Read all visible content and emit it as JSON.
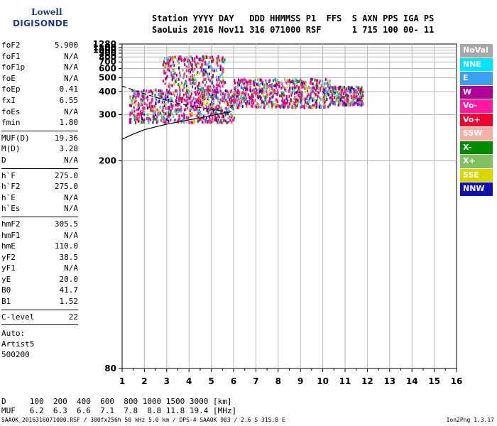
{
  "logo": {
    "line1": "Lowell",
    "line2": "DIGISONDE"
  },
  "header": {
    "line1": "Station YYYY DAY   DDD HHMMSS P1  FFS  S AXN PPS IGA PS",
    "line2": "SaoLuis 2016 Nov11 316 071000 RSF      1 715 100 00- 11"
  },
  "params": [
    {
      "group": [
        {
          "name": "foF2",
          "value": "5.900"
        },
        {
          "name": "foF1",
          "value": "N/A"
        },
        {
          "name": "foF1p",
          "value": "N/A"
        },
        {
          "name": "foE",
          "value": "N/A"
        },
        {
          "name": "foEp",
          "value": "0.41"
        },
        {
          "name": "fxI",
          "value": "6.55"
        },
        {
          "name": "foEs",
          "value": "N/A"
        },
        {
          "name": "fmin",
          "value": "1.80"
        }
      ]
    },
    {
      "group": [
        {
          "name": "MUF(D)",
          "value": "19.36"
        },
        {
          "name": "M(D)",
          "value": "3.28"
        },
        {
          "name": "D",
          "value": "N/A"
        }
      ]
    },
    {
      "group": [
        {
          "name": "h`F",
          "value": "275.0"
        },
        {
          "name": "h`F2",
          "value": "275.0"
        },
        {
          "name": "h`E",
          "value": "N/A"
        },
        {
          "name": "h`Es",
          "value": "N/A"
        }
      ]
    },
    {
      "group": [
        {
          "name": "hmF2",
          "value": "305.5"
        },
        {
          "name": "hmF1",
          "value": "N/A"
        },
        {
          "name": "hmE",
          "value": "110.0"
        },
        {
          "name": "yF2",
          "value": "38.5"
        },
        {
          "name": "yF1",
          "value": "N/A"
        },
        {
          "name": "yE",
          "value": "20.0"
        },
        {
          "name": "B0",
          "value": "41.7"
        },
        {
          "name": "B1",
          "value": "1.52"
        }
      ]
    },
    {
      "group": [
        {
          "name": "C-level",
          "value": "22"
        }
      ]
    }
  ],
  "auto": {
    "line1": "Auto:",
    "line2": "Artist5",
    "line3": "500200"
  },
  "legend": [
    {
      "label": "NoVal",
      "color": "#a8a8a8"
    },
    {
      "label": "NNE",
      "color": "#00e5ff"
    },
    {
      "label": "E",
      "color": "#3aa0f0"
    },
    {
      "label": "W",
      "color": "#b0009a"
    },
    {
      "label": "Vo-",
      "color": "#ff1aa0"
    },
    {
      "label": "Vo+",
      "color": "#f00030"
    },
    {
      "label": "SSW",
      "color": "#f5b0a8"
    },
    {
      "label": "X-",
      "color": "#008c00"
    },
    {
      "label": "X+",
      "color": "#80c060"
    },
    {
      "label": "SSE",
      "color": "#d8d800"
    },
    {
      "label": "NNW",
      "color": "#1010b0"
    }
  ],
  "chart_data": {
    "type": "scatter",
    "xlabel": "",
    "ylabel": "",
    "x_ticks": [
      1,
      2,
      3,
      4,
      5,
      6,
      7,
      8,
      9,
      10,
      11,
      12,
      13,
      14,
      15,
      16
    ],
    "y_ticks": [
      80,
      200,
      300,
      400,
      500,
      600,
      700,
      800,
      900,
      1000,
      1100,
      1280
    ],
    "xlim": [
      1,
      16
    ],
    "ylim": [
      80,
      1280
    ],
    "scale": "reciprocal-height",
    "grid": true,
    "legend_position": "right",
    "traces": [
      {
        "name": "O-trace profile",
        "x": [
          1.0,
          1.5,
          2.0,
          2.5,
          3.0,
          3.5,
          4.0,
          4.5,
          5.0,
          5.5,
          5.9
        ],
        "y": [
          237,
          248,
          258,
          265,
          272,
          278,
          284,
          290,
          297,
          305,
          310
        ]
      },
      {
        "name": "dashed trace",
        "x": [
          1.0,
          1.5,
          2.0,
          2.5,
          3.0,
          3.5,
          4.0,
          4.5,
          5.0,
          5.5,
          5.9
        ],
        "y": [
          435,
          410,
          388,
          370,
          355,
          342,
          332,
          325,
          318,
          312,
          306
        ]
      }
    ],
    "regions": [
      {
        "x": [
          1.3,
          6.0
        ],
        "y": [
          280,
          420
        ],
        "weight": 0.9
      },
      {
        "x": [
          2.8,
          5.6
        ],
        "y": [
          420,
          850
        ],
        "weight": 0.35
      },
      {
        "x": [
          6.0,
          10.3
        ],
        "y": [
          330,
          500
        ],
        "weight": 0.8
      },
      {
        "x": [
          10.3,
          11.8
        ],
        "y": [
          340,
          440
        ],
        "weight": 0.3
      }
    ]
  },
  "dmuf": {
    "d_label": "D",
    "d_values": "100  200  400  600  800 1000 1500 3000 [km]",
    "muf_label": "MUF",
    "muf_values": "6.2  6.3  6.6  7.1  7.8  8.8 11.8 19.4 [MHz]"
  },
  "footer": {
    "text": "SAA0K_2016316071000.RSF / 300fx256h 50 kHz 5.0 km / DPS-4 SAA0K 903 / 2.6 S 315.8 E",
    "version": "Ion2Png 1.3.17"
  }
}
